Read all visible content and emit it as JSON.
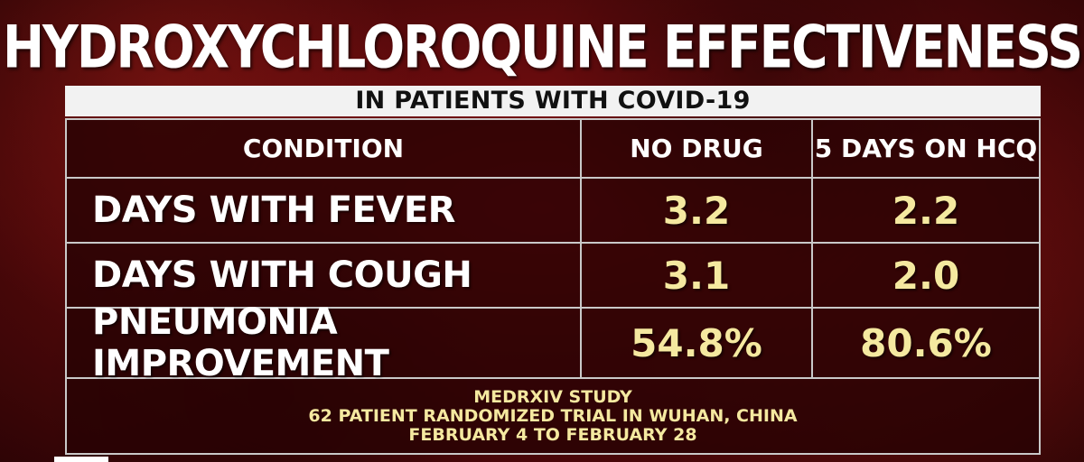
{
  "title": "HYDROXYCHLOROQUINE EFFECTIVENESS",
  "subtitle": "IN PATIENTS WITH COVID-19",
  "chart_data": {
    "type": "table",
    "columns": [
      "CONDITION",
      "NO DRUG",
      "5 DAYS ON HCQ"
    ],
    "rows": [
      {
        "label": "DAYS WITH FEVER",
        "values": [
          "3.2",
          "2.2"
        ]
      },
      {
        "label": "DAYS WITH COUGH",
        "values": [
          "3.1",
          "2.0"
        ]
      },
      {
        "label": "PNEUMONIA IMPROVEMENT",
        "values": [
          "54.8%",
          "80.6%"
        ]
      }
    ]
  },
  "footer": {
    "lines": [
      "MEDRXIV STUDY",
      "62 PATIENT RANDOMIZED TRIAL IN WUHAN, CHINA",
      "FEBRUARY 4 TO FEBRUARY 28"
    ]
  },
  "colors": {
    "background": "#6e0b0e",
    "value_text": "#f5e9a0",
    "label_text": "#ffffff",
    "grid_lines": "#c9c9c9",
    "subtitle_bg": "#f2f2f2"
  }
}
